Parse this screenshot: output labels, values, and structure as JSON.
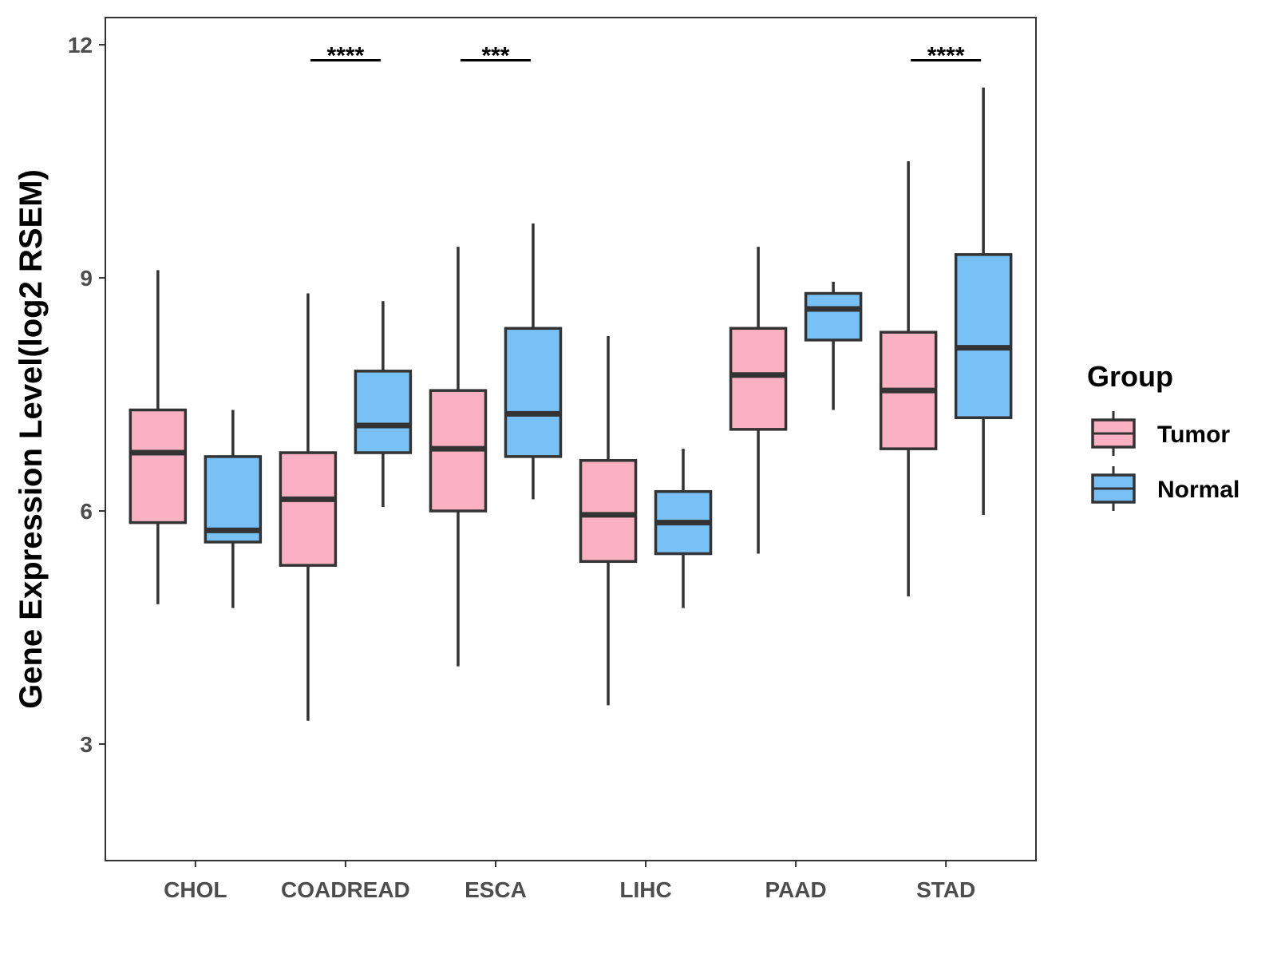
{
  "chart_data": {
    "type": "boxplot",
    "title": "",
    "xlabel": "",
    "ylabel": "Gene Expression Level(log2 RSEM)",
    "ylim": [
      1.5,
      12.35
    ],
    "yticks": [
      3,
      6,
      9,
      12
    ],
    "grid": false,
    "legend_position": "right",
    "legend": {
      "title": "Group",
      "entries": [
        {
          "name": "Tumor",
          "color": "#FBB1C3"
        },
        {
          "name": "Normal",
          "color": "#77C1F7"
        }
      ]
    },
    "categories": [
      "CHOL",
      "COADREAD",
      "ESCA",
      "LIHC",
      "PAAD",
      "STAD"
    ],
    "series": [
      {
        "name": "Tumor",
        "color": "#FBB1C3",
        "boxes": [
          {
            "whisker_low": 4.8,
            "q1": 5.85,
            "median": 6.75,
            "q3": 7.3,
            "whisker_high": 9.1
          },
          {
            "whisker_low": 3.3,
            "q1": 5.3,
            "median": 6.15,
            "q3": 6.75,
            "whisker_high": 8.8
          },
          {
            "whisker_low": 4.0,
            "q1": 6.0,
            "median": 6.8,
            "q3": 7.55,
            "whisker_high": 9.4
          },
          {
            "whisker_low": 3.5,
            "q1": 5.35,
            "median": 5.95,
            "q3": 6.65,
            "whisker_high": 8.25
          },
          {
            "whisker_low": 5.45,
            "q1": 7.05,
            "median": 7.75,
            "q3": 8.35,
            "whisker_high": 9.4
          },
          {
            "whisker_low": 4.9,
            "q1": 6.8,
            "median": 7.55,
            "q3": 8.3,
            "whisker_high": 10.5
          }
        ]
      },
      {
        "name": "Normal",
        "color": "#77C1F7",
        "boxes": [
          {
            "whisker_low": 4.75,
            "q1": 5.6,
            "median": 5.75,
            "q3": 6.7,
            "whisker_high": 7.3
          },
          {
            "whisker_low": 6.05,
            "q1": 6.75,
            "median": 7.1,
            "q3": 7.8,
            "whisker_high": 8.7
          },
          {
            "whisker_low": 6.15,
            "q1": 6.7,
            "median": 7.25,
            "q3": 8.35,
            "whisker_high": 9.7
          },
          {
            "whisker_low": 4.75,
            "q1": 5.45,
            "median": 5.85,
            "q3": 6.25,
            "whisker_high": 6.8
          },
          {
            "whisker_low": 7.3,
            "q1": 8.2,
            "median": 8.6,
            "q3": 8.8,
            "whisker_high": 8.95
          },
          {
            "whisker_low": 5.95,
            "q1": 7.2,
            "median": 8.1,
            "q3": 9.3,
            "whisker_high": 11.45
          }
        ]
      }
    ],
    "significance": [
      {
        "category": "COADREAD",
        "label": "****",
        "y": 11.8
      },
      {
        "category": "ESCA",
        "label": "***",
        "y": 11.8
      },
      {
        "category": "STAD",
        "label": "****",
        "y": 11.8
      }
    ]
  }
}
